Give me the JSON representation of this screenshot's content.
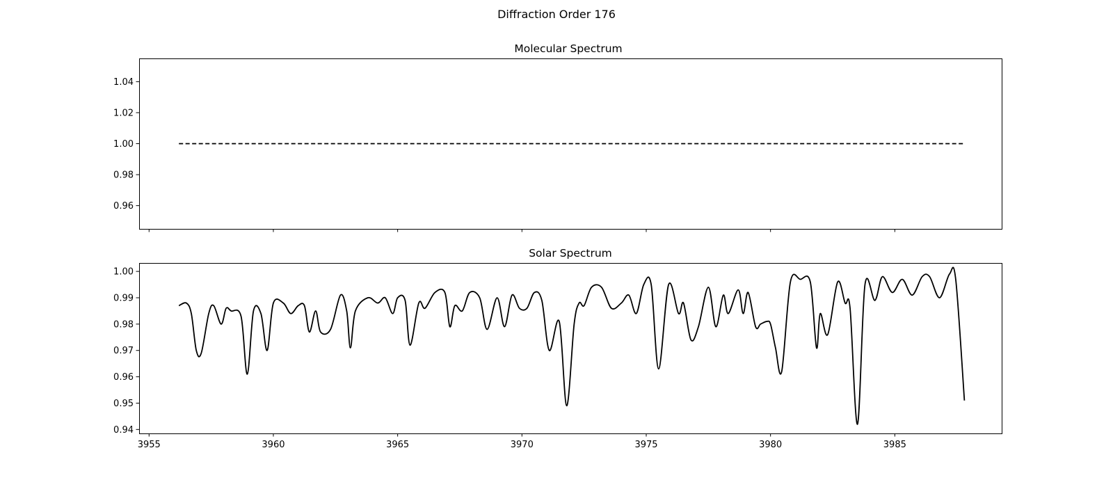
{
  "figure": {
    "title": "Diffraction Order 176"
  },
  "chart_data": [
    {
      "type": "line",
      "title": "Molecular Spectrum",
      "xlabel": "",
      "ylabel": "",
      "xlim": [
        3954.6,
        3989.3
      ],
      "ylim": [
        0.945,
        1.055
      ],
      "grid": false,
      "xticks": [
        3955,
        3960,
        3965,
        3970,
        3975,
        3980,
        3985
      ],
      "xtick_labels_visible": false,
      "yticks": [
        0.96,
        0.98,
        1.0,
        1.02,
        1.04
      ],
      "ytick_labels": [
        "0.96",
        "0.98",
        "1.00",
        "1.02",
        "1.04"
      ],
      "series": [
        {
          "line_style": "dashed",
          "color": "#000000",
          "x": [
            3956.2,
            3987.8
          ],
          "y": [
            1.0,
            1.0
          ]
        }
      ]
    },
    {
      "type": "line",
      "title": "Solar Spectrum",
      "xlabel": "",
      "ylabel": "",
      "xlim": [
        3954.6,
        3989.3
      ],
      "ylim": [
        0.9385,
        1.0032
      ],
      "grid": false,
      "xticks": [
        3955,
        3960,
        3965,
        3970,
        3975,
        3980,
        3985
      ],
      "xtick_labels": [
        "3955",
        "3960",
        "3965",
        "3970",
        "3975",
        "3980",
        "3985"
      ],
      "yticks": [
        0.94,
        0.95,
        0.96,
        0.97,
        0.98,
        0.99,
        1.0
      ],
      "ytick_labels": [
        "0.94",
        "0.95",
        "0.96",
        "0.97",
        "0.98",
        "0.99",
        "1.00"
      ],
      "series": [
        {
          "line_style": "solid",
          "color": "#000000",
          "x": [
            3956.2,
            3956.5,
            3956.7,
            3956.9,
            3957.1,
            3957.4,
            3957.6,
            3957.9,
            3958.1,
            3958.3,
            3958.7,
            3958.95,
            3959.2,
            3959.5,
            3959.75,
            3960.0,
            3960.4,
            3960.7,
            3961.0,
            3961.25,
            3961.45,
            3961.7,
            3961.9,
            3962.3,
            3962.7,
            3962.95,
            3963.1,
            3963.3,
            3963.8,
            3964.2,
            3964.5,
            3964.8,
            3965.0,
            3965.3,
            3965.5,
            3965.85,
            3966.1,
            3966.5,
            3966.9,
            3967.1,
            3967.3,
            3967.6,
            3967.9,
            3968.3,
            3968.6,
            3969.0,
            3969.3,
            3969.6,
            3969.9,
            3970.2,
            3970.5,
            3970.8,
            3971.1,
            3971.5,
            3971.8,
            3972.1,
            3972.3,
            3972.5,
            3972.8,
            3973.2,
            3973.6,
            3974.0,
            3974.3,
            3974.6,
            3974.9,
            3975.2,
            3975.5,
            3975.9,
            3976.3,
            3976.5,
            3976.8,
            3977.1,
            3977.5,
            3977.8,
            3978.1,
            3978.3,
            3978.7,
            3978.9,
            3979.1,
            3979.4,
            3979.6,
            3979.85,
            3980.0,
            3980.2,
            3980.45,
            3980.8,
            3981.2,
            3981.6,
            3981.85,
            3982.0,
            3982.3,
            3982.7,
            3983.0,
            3983.2,
            3983.5,
            3983.8,
            3984.2,
            3984.5,
            3984.9,
            3985.3,
            3985.7,
            3986.1,
            3986.4,
            3986.8,
            3987.2,
            3987.45,
            3987.8
          ],
          "y": [
            0.987,
            0.988,
            0.984,
            0.97,
            0.969,
            0.984,
            0.987,
            0.98,
            0.986,
            0.985,
            0.983,
            0.961,
            0.985,
            0.984,
            0.97,
            0.988,
            0.988,
            0.984,
            0.987,
            0.987,
            0.977,
            0.985,
            0.977,
            0.978,
            0.991,
            0.985,
            0.971,
            0.985,
            0.99,
            0.988,
            0.99,
            0.984,
            0.99,
            0.989,
            0.972,
            0.988,
            0.986,
            0.992,
            0.992,
            0.979,
            0.987,
            0.985,
            0.992,
            0.99,
            0.978,
            0.99,
            0.979,
            0.991,
            0.986,
            0.986,
            0.992,
            0.989,
            0.97,
            0.981,
            0.949,
            0.98,
            0.988,
            0.987,
            0.994,
            0.994,
            0.986,
            0.988,
            0.991,
            0.984,
            0.995,
            0.995,
            0.963,
            0.995,
            0.984,
            0.988,
            0.974,
            0.979,
            0.994,
            0.979,
            0.991,
            0.984,
            0.993,
            0.984,
            0.992,
            0.979,
            0.98,
            0.981,
            0.98,
            0.971,
            0.962,
            0.996,
            0.997,
            0.996,
            0.971,
            0.984,
            0.976,
            0.996,
            0.988,
            0.986,
            0.942,
            0.995,
            0.989,
            0.998,
            0.992,
            0.997,
            0.991,
            0.998,
            0.998,
            0.99,
            0.999,
            0.997,
            0.951
          ]
        }
      ]
    }
  ]
}
